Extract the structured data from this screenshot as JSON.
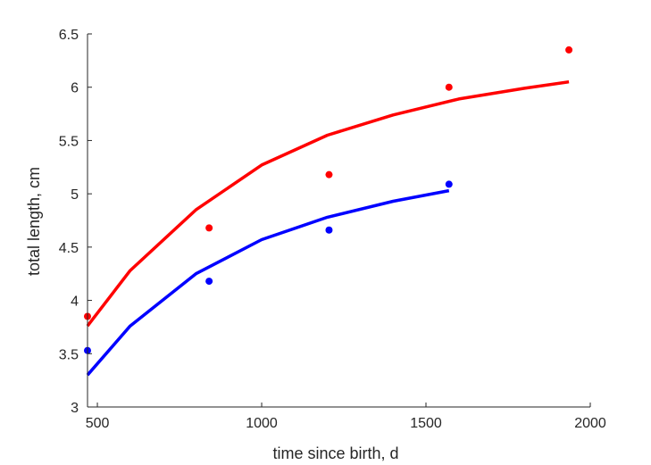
{
  "chart_data": {
    "type": "scatter",
    "title": "",
    "xlabel": "time since birth, d",
    "ylabel": "total length, cm",
    "xlim": [
      470,
      2000
    ],
    "ylim": [
      3,
      6.5
    ],
    "xticks": [
      500,
      1000,
      1500,
      2000
    ],
    "yticks": [
      3,
      3.5,
      4,
      4.5,
      5,
      5.5,
      6,
      6.5
    ],
    "xtick_labels": [
      "500",
      "1000",
      "1500",
      "2000"
    ],
    "ytick_labels": [
      "3",
      "3.5",
      "4",
      "4.5",
      "5",
      "5.5",
      "6",
      "6.5"
    ],
    "grid": false,
    "series": [
      {
        "color": "#ff0000",
        "points": {
          "x": [
            470,
            840,
            1205,
            1570,
            1935
          ],
          "y": [
            3.85,
            4.68,
            5.18,
            6.0,
            6.35
          ]
        },
        "fit": {
          "x": [
            470,
            600,
            800,
            1000,
            1200,
            1400,
            1600,
            1800,
            1935
          ],
          "y": [
            3.76,
            4.28,
            4.85,
            5.27,
            5.55,
            5.74,
            5.89,
            5.99,
            6.05
          ]
        }
      },
      {
        "color": "#0000ff",
        "points": {
          "x": [
            470,
            840,
            1205,
            1570
          ],
          "y": [
            3.53,
            4.18,
            4.66,
            5.09
          ]
        },
        "fit": {
          "x": [
            470,
            600,
            800,
            1000,
            1200,
            1400,
            1570
          ],
          "y": [
            3.3,
            3.76,
            4.25,
            4.57,
            4.78,
            4.93,
            5.03
          ]
        }
      }
    ]
  }
}
